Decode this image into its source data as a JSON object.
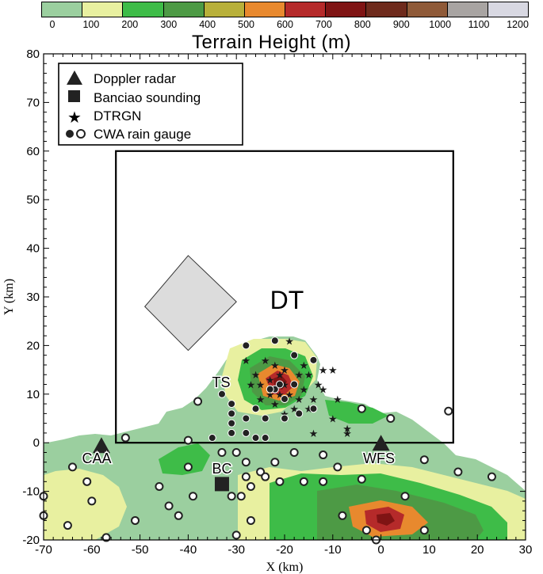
{
  "colorbar": {
    "title": "Terrain Height (m)",
    "ticks": [
      "0",
      "100",
      "200",
      "300",
      "400",
      "500",
      "600",
      "700",
      "800",
      "900",
      "1000",
      "1100",
      "1200"
    ],
    "colors": [
      "#9bcf9f",
      "#e8f0a0",
      "#3ebc48",
      "#4d9a45",
      "#b8b03a",
      "#e8892e",
      "#b52a2a",
      "#7f1414",
      "#6e2a1c",
      "#8f5a38",
      "#a8a4a2",
      "#d8d8e2"
    ]
  },
  "axes": {
    "xlabel": "X (km)",
    "ylabel": "Y (km)",
    "xticks": [
      "-70",
      "-60",
      "-50",
      "-40",
      "-30",
      "-20",
      "-10",
      "0",
      "10",
      "20",
      "30"
    ],
    "yticks": [
      "80",
      "70",
      "60",
      "50",
      "40",
      "30",
      "20",
      "10",
      "0",
      "-10",
      "-20"
    ]
  },
  "legend": {
    "items": [
      {
        "label": "Doppler radar",
        "symbol": "triangle"
      },
      {
        "label": "Banciao sounding",
        "symbol": "square"
      },
      {
        "label": "DTRGN",
        "symbol": "star"
      },
      {
        "label": "CWA rain gauge",
        "symbol": "circle-filled-open"
      }
    ]
  },
  "annotations": {
    "domain": "DT",
    "radar_1": "CAA",
    "radar_2": "WFS",
    "sounding": "BC",
    "mountain": "TS"
  },
  "chart_data": {
    "type": "scatter",
    "xlabel": "X (km)",
    "ylabel": "Y (km)",
    "xlim": [
      -70,
      30
    ],
    "ylim": [
      -20,
      80
    ],
    "domain_box": {
      "x": [
        -55,
        15
      ],
      "y": [
        0,
        60
      ]
    },
    "grey_diamond_corners": [
      [
        -40,
        38.5
      ],
      [
        -49,
        28
      ],
      [
        -40,
        19
      ],
      [
        -30,
        29
      ]
    ],
    "radars": [
      {
        "name": "CAA",
        "x": -58,
        "y": -0.5
      },
      {
        "name": "WFS",
        "x": 0,
        "y": 0
      }
    ],
    "sounding": {
      "name": "BC",
      "x": -33,
      "y": -8.5
    },
    "dtrgn_stars": [
      [
        -28,
        17
      ],
      [
        -26,
        14
      ],
      [
        -25,
        12
      ],
      [
        -23,
        13
      ],
      [
        -22,
        16
      ],
      [
        -21,
        14
      ],
      [
        -20,
        12
      ],
      [
        -19,
        10
      ],
      [
        -18,
        12
      ],
      [
        -17,
        9
      ],
      [
        -17,
        14
      ],
      [
        -16,
        11
      ],
      [
        -15,
        14
      ],
      [
        -15,
        7
      ],
      [
        -13,
        12
      ],
      [
        -12,
        15
      ],
      [
        -10,
        15
      ],
      [
        -9,
        9
      ],
      [
        -10,
        5
      ],
      [
        -7,
        3
      ],
      [
        -7,
        2
      ],
      [
        -14,
        2
      ],
      [
        -25,
        9
      ],
      [
        -23,
        10
      ],
      [
        -22,
        8
      ],
      [
        -21,
        10
      ],
      [
        -20,
        6
      ],
      [
        -27,
        12
      ],
      [
        -24,
        17
      ],
      [
        -19,
        21
      ],
      [
        -18,
        7
      ],
      [
        -20,
        15
      ],
      [
        -16,
        16
      ],
      [
        -14,
        9
      ],
      [
        -12,
        11
      ]
    ],
    "gauges_filled": [
      [
        -28,
        20
      ],
      [
        -22,
        21
      ],
      [
        -18,
        18
      ],
      [
        -14,
        17
      ],
      [
        -33,
        10
      ],
      [
        -31,
        8
      ],
      [
        -31,
        6
      ],
      [
        -31,
        4
      ],
      [
        -31,
        2
      ],
      [
        -35,
        1
      ],
      [
        -28,
        2
      ],
      [
        -26,
        1
      ],
      [
        -24,
        1
      ],
      [
        -24,
        5
      ],
      [
        -28,
        5
      ],
      [
        -26,
        7
      ],
      [
        -22,
        11
      ],
      [
        -21,
        12
      ],
      [
        -23,
        11
      ],
      [
        -20,
        9
      ],
      [
        -20,
        5
      ],
      [
        -18,
        12
      ],
      [
        -17,
        6
      ],
      [
        -14,
        7
      ]
    ],
    "gauges_open": [
      [
        -38,
        8.5
      ],
      [
        -53,
        1
      ],
      [
        -40,
        0.5
      ],
      [
        -64,
        -5
      ],
      [
        -61,
        -8
      ],
      [
        -70,
        -11
      ],
      [
        -60,
        -12
      ],
      [
        -65,
        -17
      ],
      [
        -57,
        -19.5
      ],
      [
        -51,
        -16
      ],
      [
        -46,
        -9
      ],
      [
        -44,
        -13
      ],
      [
        -42,
        -15
      ],
      [
        -40,
        -5
      ],
      [
        -39,
        -11
      ],
      [
        -33,
        -2
      ],
      [
        -30,
        -2
      ],
      [
        -31,
        -11
      ],
      [
        -28,
        -4
      ],
      [
        -28,
        -7
      ],
      [
        -27,
        -9
      ],
      [
        -25,
        -6
      ],
      [
        -24,
        -7
      ],
      [
        -22,
        -4
      ],
      [
        -21,
        -8
      ],
      [
        -18,
        -2
      ],
      [
        -16,
        -8
      ],
      [
        -12,
        -2.5
      ],
      [
        -12,
        -8
      ],
      [
        -9,
        -5
      ],
      [
        -8,
        -15
      ],
      [
        -4,
        -7.5
      ],
      [
        -4,
        7
      ],
      [
        2,
        5
      ],
      [
        5,
        -11
      ],
      [
        9,
        -18
      ],
      [
        9,
        -3.5
      ],
      [
        14,
        6.5
      ],
      [
        16,
        -6
      ],
      [
        23,
        -7
      ],
      [
        -29,
        -11
      ],
      [
        -27,
        -16
      ],
      [
        -30,
        -19
      ],
      [
        -1,
        -20
      ],
      [
        -3,
        -18
      ],
      [
        -70,
        -15
      ]
    ]
  }
}
